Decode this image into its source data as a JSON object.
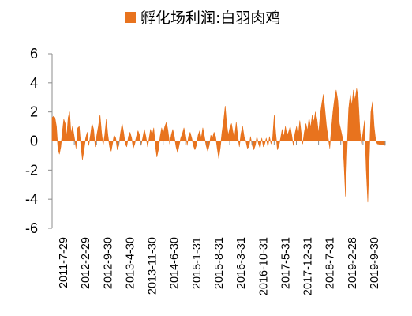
{
  "chart_data": {
    "type": "area",
    "title": "",
    "xlabel": "",
    "ylabel": "",
    "ylim": [
      -6,
      6
    ],
    "yticks": [
      6,
      4,
      2,
      0,
      -2,
      -4,
      -6
    ],
    "x_range": [
      "2011-07-29",
      "2020-04-30"
    ],
    "xticks": [
      "2011-7-29",
      "2012-2-29",
      "2012-9-30",
      "2013-4-30",
      "2013-11-30",
      "2014-6-30",
      "2015-1-31",
      "2015-8-31",
      "2016-3-31",
      "2016-10-31",
      "2017-5-31",
      "2017-12-31",
      "2018-7-31",
      "2019-2-28",
      "2019-9-30"
    ],
    "grid": false,
    "legend_position": "top",
    "series": [
      {
        "name": "孵化场利润:白羽肉鸡",
        "color": "#E8731E",
        "points": [
          [
            "2011-07-29",
            1.6
          ],
          [
            "2011-08-12",
            1.7
          ],
          [
            "2011-08-26",
            1.6
          ],
          [
            "2011-09-09",
            1.0
          ],
          [
            "2011-09-23",
            -0.5
          ],
          [
            "2011-10-07",
            -0.9
          ],
          [
            "2011-10-21",
            -0.4
          ],
          [
            "2011-11-04",
            0.6
          ],
          [
            "2011-11-18",
            1.5
          ],
          [
            "2011-12-02",
            1.2
          ],
          [
            "2011-12-16",
            0.3
          ],
          [
            "2011-12-30",
            1.6
          ],
          [
            "2012-01-13",
            2.0
          ],
          [
            "2012-01-27",
            0.5
          ],
          [
            "2012-02-10",
            1.0
          ],
          [
            "2012-02-29",
            0.2
          ],
          [
            "2012-03-15",
            -0.5
          ],
          [
            "2012-03-31",
            0.9
          ],
          [
            "2012-04-15",
            1.0
          ],
          [
            "2012-04-30",
            -0.3
          ],
          [
            "2012-05-15",
            -1.3
          ],
          [
            "2012-05-31",
            -0.6
          ],
          [
            "2012-06-15",
            0.2
          ],
          [
            "2012-06-30",
            0.6
          ],
          [
            "2012-07-15",
            -0.3
          ],
          [
            "2012-07-31",
            0.4
          ],
          [
            "2012-08-15",
            1.2
          ],
          [
            "2012-08-31",
            0.8
          ],
          [
            "2012-09-15",
            -0.4
          ],
          [
            "2012-09-30",
            0.4
          ],
          [
            "2012-10-15",
            1.0
          ],
          [
            "2012-10-31",
            1.8
          ],
          [
            "2012-11-15",
            0.6
          ],
          [
            "2012-11-30",
            -0.3
          ],
          [
            "2012-12-15",
            0.4
          ],
          [
            "2012-12-31",
            1.5
          ],
          [
            "2013-01-15",
            0.4
          ],
          [
            "2013-01-31",
            -0.4
          ],
          [
            "2013-02-15",
            -0.7
          ],
          [
            "2013-02-28",
            -0.2
          ],
          [
            "2013-03-15",
            0.4
          ],
          [
            "2013-03-31",
            0.2
          ],
          [
            "2013-04-15",
            -0.6
          ],
          [
            "2013-04-30",
            -0.3
          ],
          [
            "2013-05-15",
            0.5
          ],
          [
            "2013-05-31",
            1.2
          ],
          [
            "2013-06-15",
            0.6
          ],
          [
            "2013-06-30",
            -0.2
          ],
          [
            "2013-07-15",
            -0.4
          ],
          [
            "2013-07-31",
            0.3
          ],
          [
            "2013-08-15",
            0.6
          ],
          [
            "2013-08-31",
            0.2
          ],
          [
            "2013-09-15",
            -0.5
          ],
          [
            "2013-09-30",
            -0.2
          ],
          [
            "2013-10-15",
            0.3
          ],
          [
            "2013-10-31",
            0.7
          ],
          [
            "2013-11-15",
            0.4
          ],
          [
            "2013-11-30",
            -0.3
          ],
          [
            "2013-12-15",
            0.2
          ],
          [
            "2013-12-31",
            0.8
          ],
          [
            "2014-01-15",
            0.3
          ],
          [
            "2014-01-31",
            -0.4
          ],
          [
            "2014-02-15",
            0.2
          ],
          [
            "2014-02-28",
            0.8
          ],
          [
            "2014-03-15",
            0.4
          ],
          [
            "2014-03-31",
            0.9
          ],
          [
            "2014-04-15",
            -0.3
          ],
          [
            "2014-04-30",
            -1.1
          ],
          [
            "2014-05-15",
            -0.6
          ],
          [
            "2014-05-31",
            0.3
          ],
          [
            "2014-06-15",
            0.9
          ],
          [
            "2014-06-30",
            0.5
          ],
          [
            "2014-07-15",
            1.0
          ],
          [
            "2014-07-31",
            1.3
          ],
          [
            "2014-08-15",
            0.7
          ],
          [
            "2014-08-31",
            -0.2
          ],
          [
            "2014-09-15",
            0.4
          ],
          [
            "2014-09-30",
            0.8
          ],
          [
            "2014-10-15",
            0.3
          ],
          [
            "2014-10-31",
            -0.4
          ],
          [
            "2014-11-15",
            -0.8
          ],
          [
            "2014-11-30",
            -0.3
          ],
          [
            "2014-12-15",
            0.2
          ],
          [
            "2014-12-31",
            0.5
          ],
          [
            "2015-01-15",
            0.9
          ],
          [
            "2015-01-31",
            0.4
          ],
          [
            "2015-02-15",
            -0.3
          ],
          [
            "2015-02-28",
            0.3
          ],
          [
            "2015-03-15",
            0.6
          ],
          [
            "2015-03-31",
            0.2
          ],
          [
            "2015-04-15",
            -0.3
          ],
          [
            "2015-04-30",
            -0.6
          ],
          [
            "2015-05-15",
            -0.3
          ],
          [
            "2015-05-31",
            0.4
          ],
          [
            "2015-06-15",
            0.7
          ],
          [
            "2015-06-30",
            0.2
          ],
          [
            "2015-07-15",
            0.9
          ],
          [
            "2015-07-31",
            0.3
          ],
          [
            "2015-08-15",
            -0.3
          ],
          [
            "2015-08-31",
            -0.7
          ],
          [
            "2015-09-15",
            -0.3
          ],
          [
            "2015-09-30",
            0.4
          ],
          [
            "2015-10-15",
            0.2
          ],
          [
            "2015-10-31",
            0.6
          ],
          [
            "2015-11-15",
            0.3
          ],
          [
            "2015-11-30",
            -0.5
          ],
          [
            "2015-12-15",
            -1.2
          ],
          [
            "2015-12-31",
            -0.4
          ],
          [
            "2016-01-15",
            0.6
          ],
          [
            "2016-01-31",
            1.4
          ],
          [
            "2016-02-15",
            2.4
          ],
          [
            "2016-02-29",
            1.2
          ],
          [
            "2016-03-15",
            0.4
          ],
          [
            "2016-03-31",
            0.9
          ],
          [
            "2016-04-15",
            1.2
          ],
          [
            "2016-04-30",
            0.6
          ],
          [
            "2016-05-15",
            0.3
          ],
          [
            "2016-05-31",
            1.3
          ],
          [
            "2016-06-15",
            0.3
          ],
          [
            "2016-06-30",
            -0.4
          ],
          [
            "2016-07-15",
            0.5
          ],
          [
            "2016-07-31",
            1.0
          ],
          [
            "2016-08-15",
            0.3
          ],
          [
            "2016-08-31",
            0.0
          ],
          [
            "2016-09-15",
            -0.5
          ],
          [
            "2016-09-30",
            -0.4
          ],
          [
            "2016-10-15",
            0.3
          ],
          [
            "2016-10-31",
            -0.3
          ],
          [
            "2016-11-15",
            -0.6
          ],
          [
            "2016-11-30",
            -0.3
          ],
          [
            "2016-12-15",
            0.3
          ],
          [
            "2016-12-31",
            -0.2
          ],
          [
            "2017-01-15",
            -0.5
          ],
          [
            "2017-01-31",
            0.2
          ],
          [
            "2017-02-15",
            -0.4
          ],
          [
            "2017-02-28",
            -0.2
          ],
          [
            "2017-03-15",
            0.2
          ],
          [
            "2017-03-31",
            -0.4
          ],
          [
            "2017-04-15",
            0.3
          ],
          [
            "2017-04-30",
            -0.2
          ],
          [
            "2017-05-15",
            0.2
          ],
          [
            "2017-05-31",
            1.8
          ],
          [
            "2017-06-15",
            0.5
          ],
          [
            "2017-06-30",
            -0.6
          ],
          [
            "2017-07-15",
            -0.3
          ],
          [
            "2017-07-31",
            0.2
          ],
          [
            "2017-08-15",
            0.8
          ],
          [
            "2017-08-31",
            0.3
          ],
          [
            "2017-09-15",
            1.0
          ],
          [
            "2017-09-30",
            0.4
          ],
          [
            "2017-10-15",
            0.6
          ],
          [
            "2017-10-31",
            1.0
          ],
          [
            "2017-11-15",
            0.4
          ],
          [
            "2017-11-30",
            -0.3
          ],
          [
            "2017-12-15",
            0.5
          ],
          [
            "2017-12-31",
            1.0
          ],
          [
            "2018-01-15",
            0.3
          ],
          [
            "2018-01-31",
            1.4
          ],
          [
            "2018-02-15",
            0.5
          ],
          [
            "2018-02-28",
            -0.2
          ],
          [
            "2018-03-15",
            0.6
          ],
          [
            "2018-03-31",
            1.2
          ],
          [
            "2018-04-15",
            0.7
          ],
          [
            "2018-04-30",
            1.6
          ],
          [
            "2018-05-15",
            0.9
          ],
          [
            "2018-05-31",
            1.8
          ],
          [
            "2018-06-15",
            1.3
          ],
          [
            "2018-06-30",
            2.0
          ],
          [
            "2018-07-15",
            1.5
          ],
          [
            "2018-07-31",
            0.5
          ],
          [
            "2018-08-15",
            1.8
          ],
          [
            "2018-08-31",
            2.6
          ],
          [
            "2018-09-15",
            3.2
          ],
          [
            "2018-09-30",
            2.1
          ],
          [
            "2018-10-15",
            1.0
          ],
          [
            "2018-10-31",
            0.2
          ],
          [
            "2018-11-15",
            -0.5
          ],
          [
            "2018-11-30",
            0.8
          ],
          [
            "2018-12-15",
            2.0
          ],
          [
            "2018-12-31",
            2.9
          ],
          [
            "2019-01-15",
            3.5
          ],
          [
            "2019-01-31",
            2.8
          ],
          [
            "2019-02-15",
            1.2
          ],
          [
            "2019-02-28",
            0.8
          ],
          [
            "2019-03-15",
            0.3
          ],
          [
            "2019-03-31",
            -1.5
          ],
          [
            "2019-04-15",
            -3.8
          ],
          [
            "2019-04-30",
            -0.6
          ],
          [
            "2019-05-15",
            2.2
          ],
          [
            "2019-05-31",
            3.2
          ],
          [
            "2019-06-15",
            2.4
          ],
          [
            "2019-06-30",
            3.5
          ],
          [
            "2019-07-15",
            2.8
          ],
          [
            "2019-07-31",
            3.6
          ],
          [
            "2019-08-15",
            3.0
          ],
          [
            "2019-08-31",
            0.8
          ],
          [
            "2019-09-15",
            -0.2
          ],
          [
            "2019-09-30",
            0.6
          ],
          [
            "2019-10-15",
            1.4
          ],
          [
            "2019-10-31",
            -2.0
          ],
          [
            "2019-11-15",
            -4.2
          ],
          [
            "2019-11-30",
            -1.0
          ],
          [
            "2019-12-15",
            2.0
          ],
          [
            "2019-12-31",
            2.7
          ],
          [
            "2020-01-15",
            1.0
          ],
          [
            "2020-01-31",
            0.0
          ],
          [
            "2020-02-15",
            -0.2
          ],
          [
            "2020-04-30",
            -0.3
          ]
        ]
      }
    ]
  }
}
